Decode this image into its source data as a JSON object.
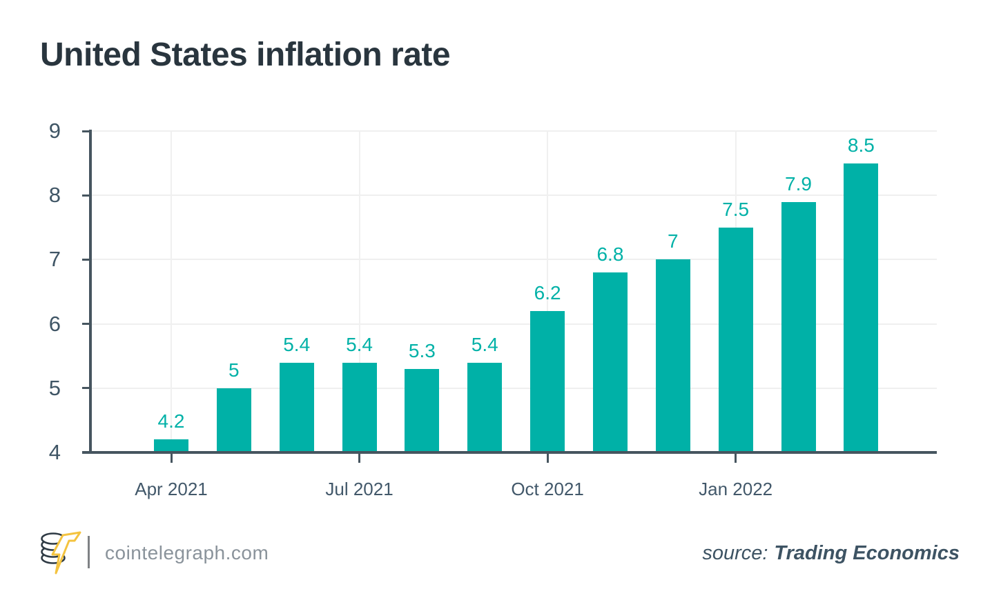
{
  "title": "United States inflation rate",
  "chart_data": {
    "type": "bar",
    "title": "United States inflation rate",
    "values": [
      4.2,
      5,
      5.4,
      5.4,
      5.3,
      5.4,
      6.2,
      6.8,
      7,
      7.5,
      7.9,
      8.5
    ],
    "bar_labels": [
      "4.2",
      "5",
      "5.4",
      "5.4",
      "5.3",
      "5.4",
      "6.2",
      "6.8",
      "7",
      "7.5",
      "7.9",
      "8.5"
    ],
    "x_tick_labels": [
      "Apr 2021",
      "Jul 2021",
      "Oct 2021",
      "Jan 2022"
    ],
    "x_tick_indices": [
      0,
      3,
      6,
      9
    ],
    "y_ticks": [
      4,
      5,
      6,
      7,
      8,
      9
    ],
    "ylim": [
      4,
      9
    ],
    "grid": true,
    "legend": "none",
    "xlabel": "",
    "ylabel": "",
    "bar_color": "#00b1a7",
    "label_color": "#00b1a7",
    "axis_color": "#46555f",
    "grid_color": "#efefef"
  },
  "footer": {
    "brand": "cointelegraph.com",
    "source_prefix": "source:",
    "source_name": "Trading Economics",
    "logo_icon": "coin-stack-lightning-logo",
    "logo_coin_color": "#2e3a44",
    "logo_bolt_color": "#f4c33f"
  }
}
